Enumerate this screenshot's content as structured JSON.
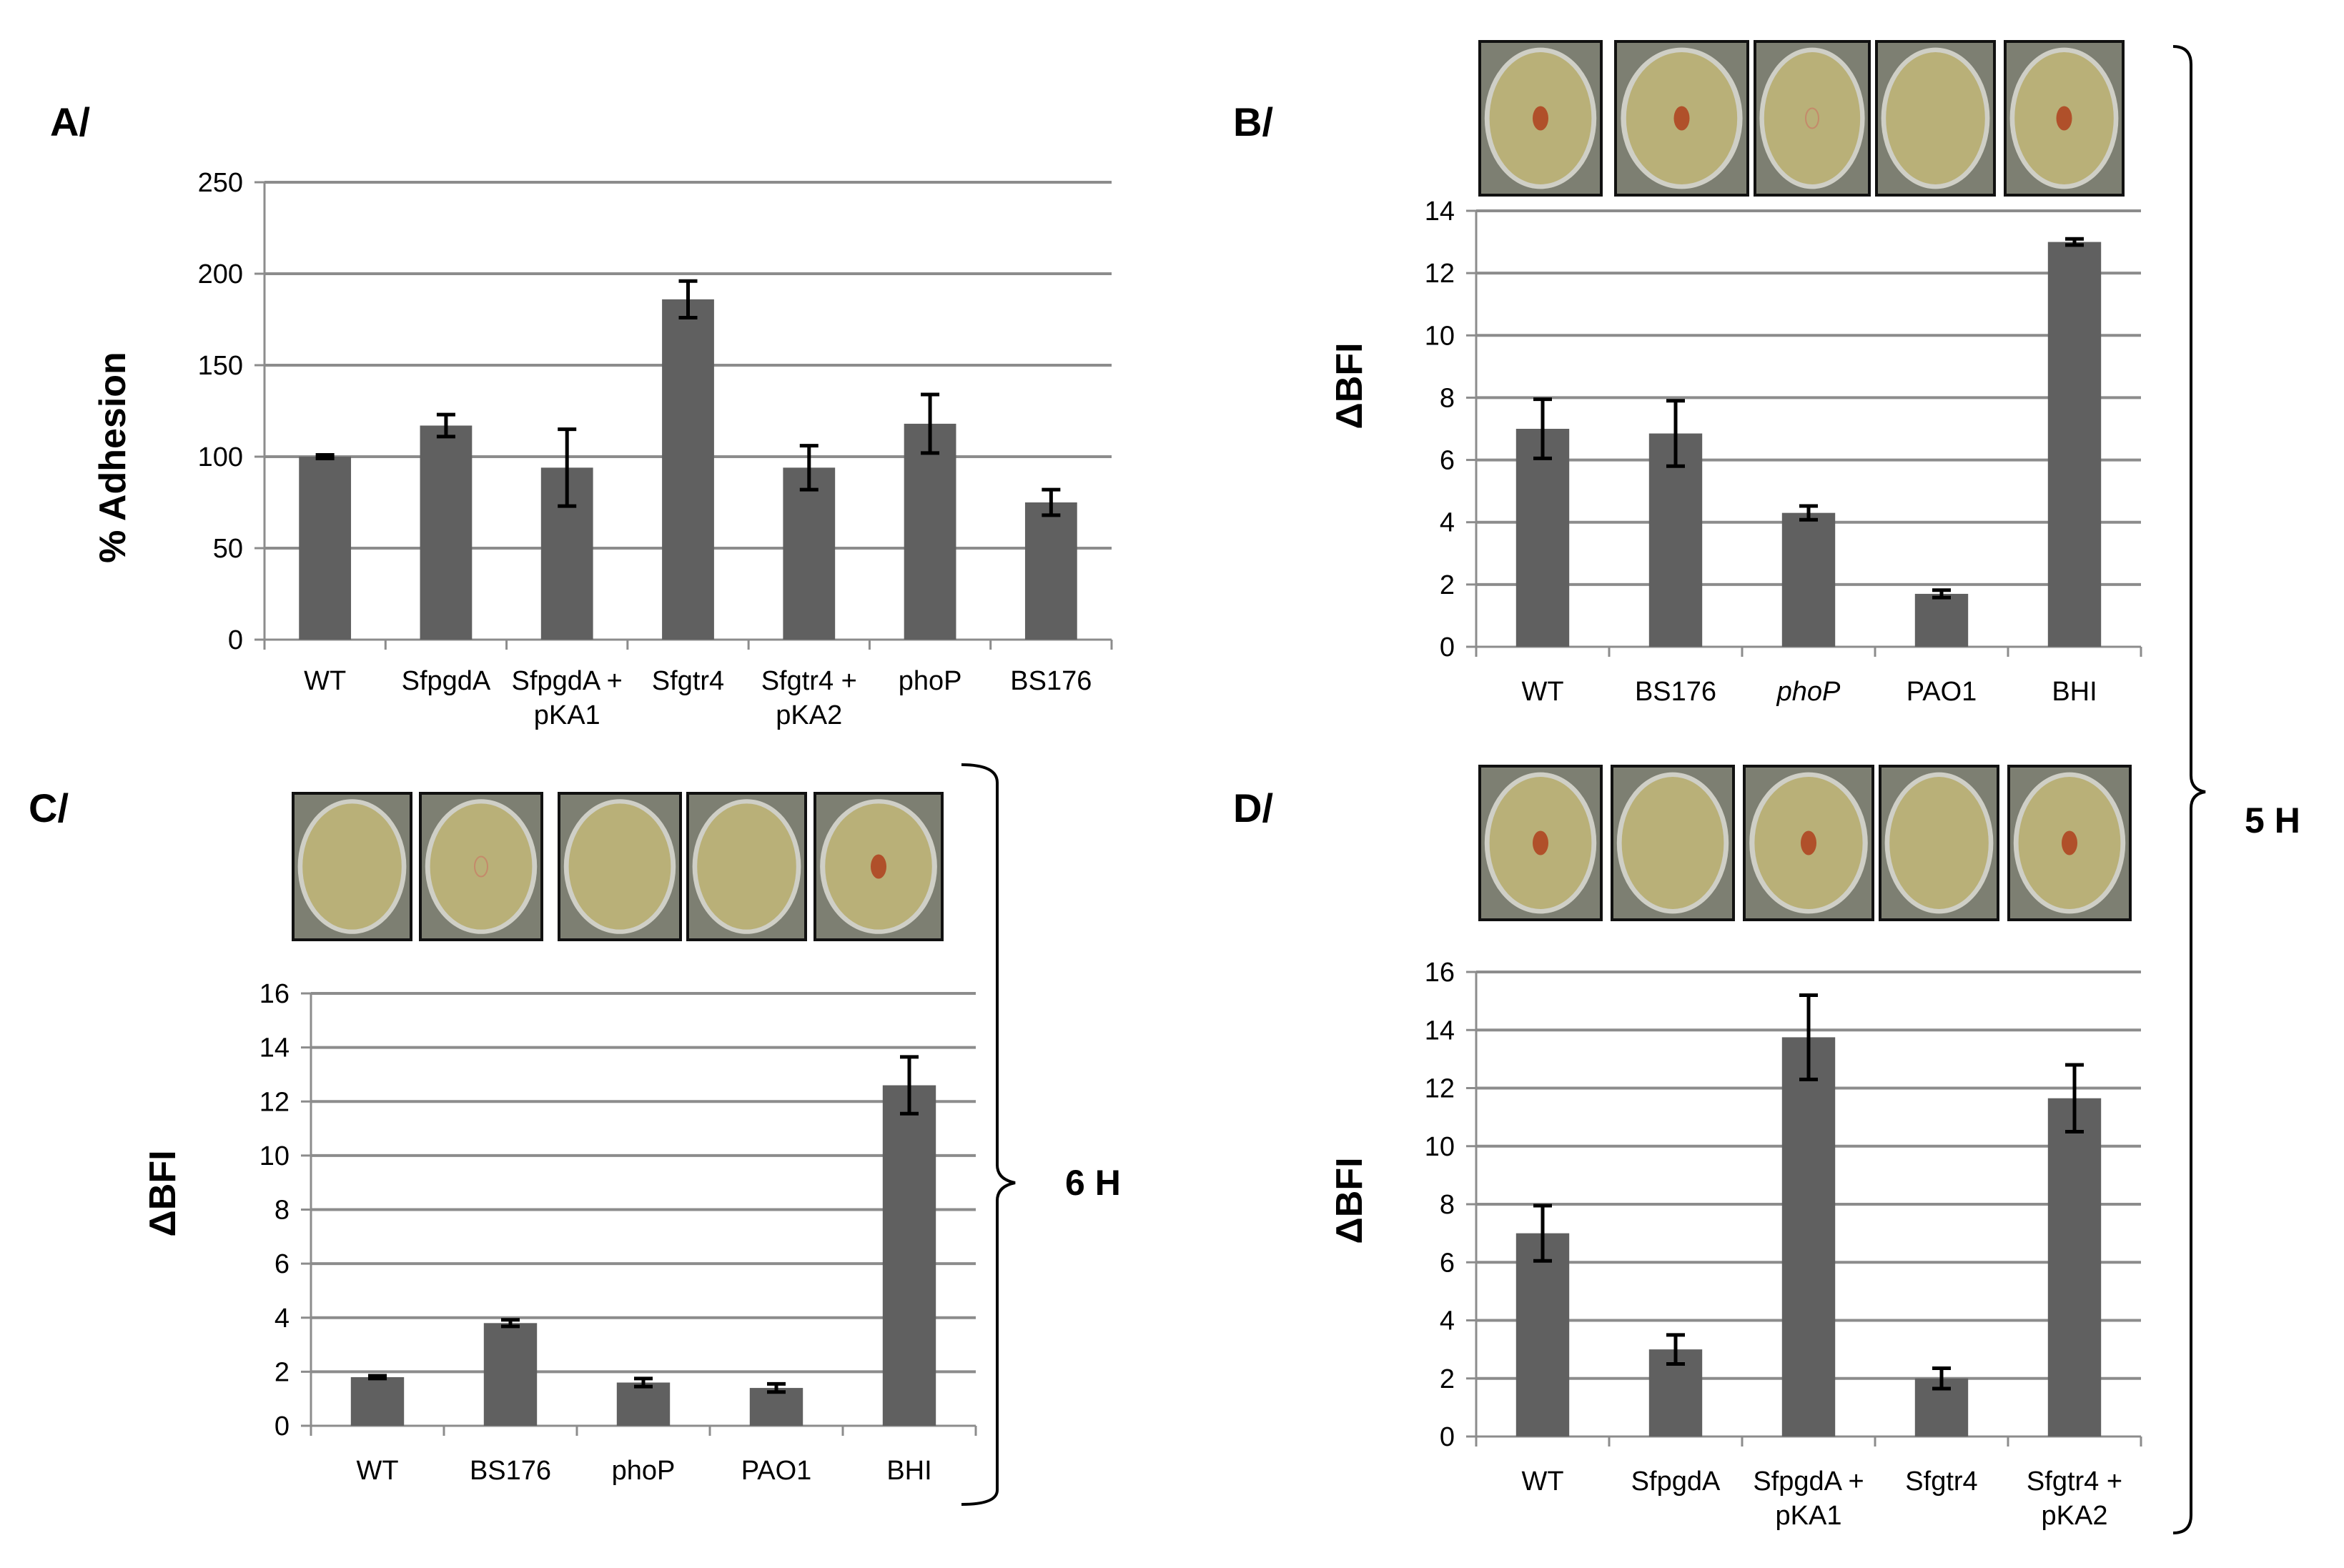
{
  "colors": {
    "bar": "#606060",
    "grid": "#8c8c8c",
    "plate": "#b9b078",
    "plate_border": "#7d7f72",
    "spot": "#b0502a"
  },
  "time_labels": {
    "five_hours": "5 H",
    "six_hours": "6 H"
  },
  "chart_data": [
    {
      "id": "A",
      "panel_label": "A/",
      "type": "bar",
      "ylabel": "% Adhesion",
      "xlabel": "",
      "ylim": [
        0,
        250
      ],
      "yticks": [
        0,
        50,
        100,
        150,
        200,
        250
      ],
      "categories": [
        [
          "WT"
        ],
        [
          "SfpgdA"
        ],
        [
          "SfpgdA +",
          "pKA1"
        ],
        [
          "Sfgtr4"
        ],
        [
          "Sfgtr4 +",
          "pKA2"
        ],
        [
          "phoP"
        ],
        [
          "BS176"
        ]
      ],
      "values": [
        100,
        117,
        94,
        186,
        94,
        118,
        75
      ],
      "errors": [
        1,
        6,
        21,
        10,
        12,
        16,
        7
      ],
      "plate_images": []
    },
    {
      "id": "B",
      "panel_label": "B/",
      "type": "bar",
      "ylabel": "ΔBFI",
      "xlabel": "",
      "ylim": [
        0,
        14
      ],
      "yticks": [
        0,
        2,
        4,
        6,
        8,
        10,
        12,
        14
      ],
      "categories": [
        [
          "WT"
        ],
        [
          "BS176"
        ],
        [
          "phoP"
        ],
        [
          "PAO1"
        ],
        [
          "BHI"
        ]
      ],
      "italic_categories": [
        "phoP"
      ],
      "values": [
        7.0,
        6.85,
        4.3,
        1.7,
        13.0
      ],
      "errors": [
        0.95,
        1.05,
        0.22,
        0.12,
        0.1
      ],
      "plate_images": [
        {
          "name": "wt-plate",
          "spot": true
        },
        {
          "name": "bs176-plate",
          "spot": true
        },
        {
          "name": "phop-plate",
          "spot": "faint"
        },
        {
          "name": "pao1-plate",
          "spot": false
        },
        {
          "name": "bhi-plate",
          "spot": true
        }
      ]
    },
    {
      "id": "C",
      "panel_label": "C/",
      "type": "bar",
      "ylabel": "ΔBFI",
      "xlabel": "",
      "ylim": [
        0,
        16
      ],
      "yticks": [
        0,
        2,
        4,
        6,
        8,
        10,
        12,
        14,
        16
      ],
      "categories": [
        [
          "WT"
        ],
        [
          "BS176"
        ],
        [
          "phoP"
        ],
        [
          "PAO1"
        ],
        [
          "BHI"
        ]
      ],
      "italic_categories": [],
      "values": [
        1.8,
        3.8,
        1.6,
        1.4,
        12.6
      ],
      "errors": [
        0.05,
        0.12,
        0.15,
        0.15,
        1.05
      ],
      "plate_images": [
        {
          "name": "wt-plate",
          "spot": false
        },
        {
          "name": "bs176-plate",
          "spot": "faint"
        },
        {
          "name": "phop-plate",
          "spot": false
        },
        {
          "name": "pao1-plate",
          "spot": false
        },
        {
          "name": "bhi-plate",
          "spot": true
        }
      ]
    },
    {
      "id": "D",
      "panel_label": "D/",
      "type": "bar",
      "ylabel": "ΔBFI",
      "xlabel": "",
      "ylim": [
        0,
        16
      ],
      "yticks": [
        0,
        2,
        4,
        6,
        8,
        10,
        12,
        14,
        16
      ],
      "categories": [
        [
          "WT"
        ],
        [
          "SfpgdA"
        ],
        [
          "SfpgdA +",
          "pKA1"
        ],
        [
          "Sfgtr4"
        ],
        [
          "Sfgtr4 +",
          "pKA2"
        ]
      ],
      "italic_categories": [],
      "values": [
        7.0,
        3.0,
        13.75,
        2.0,
        11.65
      ],
      "errors": [
        0.95,
        0.5,
        1.45,
        0.35,
        1.15
      ],
      "plate_images": [
        {
          "name": "wt-plate",
          "spot": true
        },
        {
          "name": "sfpgda-plate",
          "spot": false
        },
        {
          "name": "sfpgda-pka1-plate",
          "spot": true
        },
        {
          "name": "sfgtr4-plate",
          "spot": false
        },
        {
          "name": "sfgtr4-pka2-plate",
          "spot": true
        }
      ]
    }
  ]
}
